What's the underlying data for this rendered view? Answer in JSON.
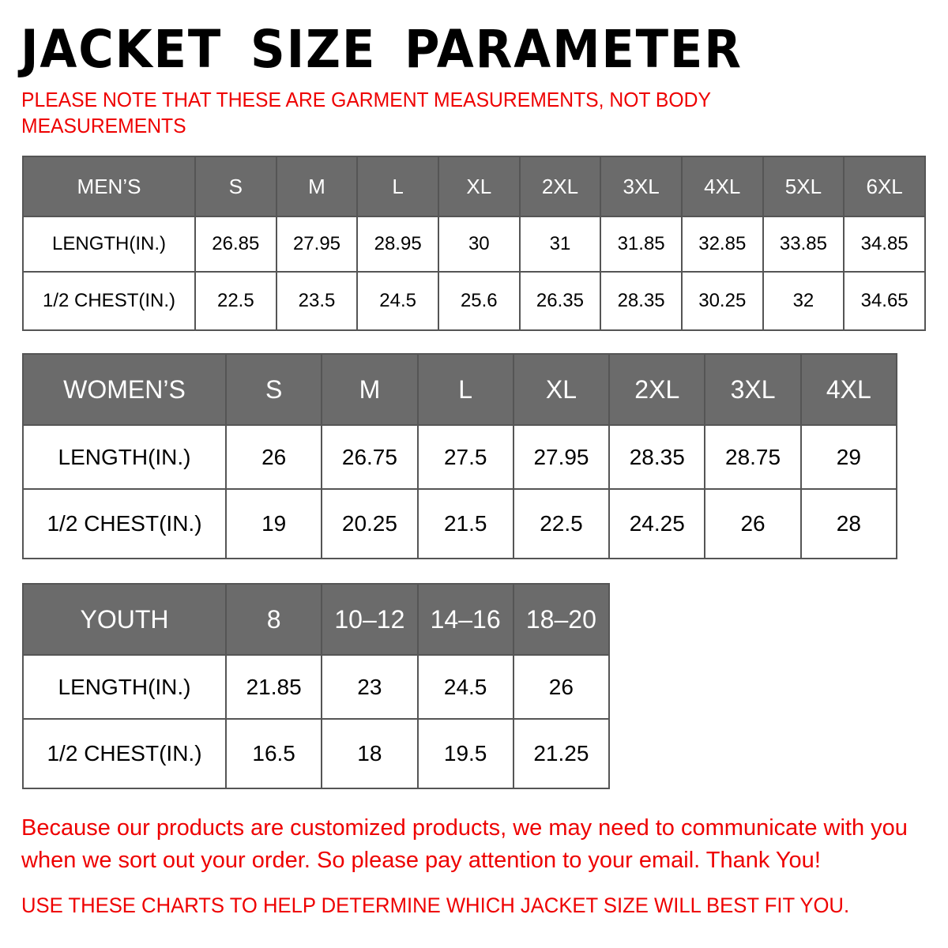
{
  "title": "JACKET SIZE PARAMETER",
  "note": "PLEASE NOTE THAT THESE ARE GARMENT MEASUREMENTS, NOT BODY MEASUREMENTS",
  "colors": {
    "header_bg": "#6b6b6b",
    "accent_red": "#ee0000"
  },
  "mens": {
    "header": [
      "MEN’S",
      "S",
      "M",
      "L",
      "XL",
      "2XL",
      "3XL",
      "4XL",
      "5XL",
      "6XL"
    ],
    "rows": [
      [
        "LENGTH(IN.)",
        "26.85",
        "27.95",
        "28.95",
        "30",
        "31",
        "31.85",
        "32.85",
        "33.85",
        "34.85"
      ],
      [
        "1/2 CHEST(IN.)",
        "22.5",
        "23.5",
        "24.5",
        "25.6",
        "26.35",
        "28.35",
        "30.25",
        "32",
        "34.65"
      ]
    ]
  },
  "womens": {
    "header": [
      "WOMEN’S",
      "S",
      "M",
      "L",
      "XL",
      "2XL",
      "3XL",
      "4XL"
    ],
    "rows": [
      [
        "LENGTH(IN.)",
        "26",
        "26.75",
        "27.5",
        "27.95",
        "28.35",
        "28.75",
        "29"
      ],
      [
        "1/2 CHEST(IN.)",
        "19",
        "20.25",
        "21.5",
        "22.5",
        "24.25",
        "26",
        "28"
      ]
    ]
  },
  "youth": {
    "header": [
      "YOUTH",
      "8",
      "10–12",
      "14–16",
      "18–20"
    ],
    "rows": [
      [
        "LENGTH(IN.)",
        "21.85",
        "23",
        "24.5",
        "26"
      ],
      [
        "1/2 CHEST(IN.)",
        "16.5",
        "18",
        "19.5",
        "21.25"
      ]
    ]
  },
  "message": "Because our products are customized products, we may need to communicate with you when we sort out your order. So please pay attention to your email. Thank You!",
  "footer": "USE THESE CHARTS TO HELP DETERMINE WHICH JACKET SIZE WILL BEST FIT YOU."
}
